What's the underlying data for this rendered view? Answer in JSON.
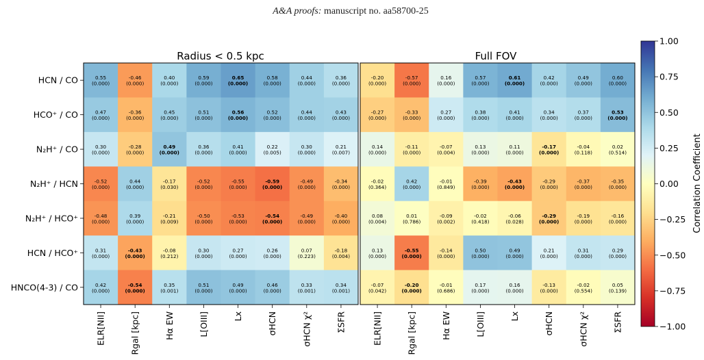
{
  "header": {
    "journal": "A&A proofs:",
    "manuscript": " manuscript no. aa58700-25"
  },
  "chart_data": {
    "type": "heatmap",
    "row_labels": [
      "HCN / CO",
      "HCO⁺ / CO",
      "N₂H⁺ / CO",
      "N₂H⁺ / HCN",
      "N₂H⁺ / HCO⁺",
      "HCN / HCO⁺",
      "HNCO(4-3) / CO"
    ],
    "col_labels": [
      "ELR[NII]",
      "Rgal [kpc]",
      "Hα EW",
      "L[OIII]",
      "Lx",
      "σHCN",
      "σHCN χ²",
      "ΣSFR"
    ],
    "colorbar": {
      "label": "Correlation Coefficient",
      "range": [
        -1.0,
        1.0
      ],
      "ticks": [
        "1.00",
        "0.75",
        "0.50",
        "0.25",
        "0.00",
        "−0.25",
        "−0.50",
        "−0.75",
        "−1.00"
      ],
      "colormap": "RdYlBu"
    },
    "panels": [
      {
        "title": "Radius < 0.5 kpc",
        "r": [
          [
            0.55,
            -0.46,
            0.4,
            0.59,
            0.65,
            0.58,
            0.44,
            0.36
          ],
          [
            0.47,
            -0.36,
            0.45,
            0.51,
            0.56,
            0.52,
            0.44,
            0.43
          ],
          [
            0.3,
            -0.28,
            0.49,
            0.36,
            0.41,
            0.22,
            0.3,
            0.21
          ],
          [
            -0.52,
            0.44,
            -0.17,
            -0.52,
            -0.55,
            -0.59,
            -0.49,
            -0.34
          ],
          [
            -0.48,
            0.39,
            -0.21,
            -0.5,
            -0.53,
            -0.54,
            -0.49,
            -0.4
          ],
          [
            0.31,
            -0.43,
            -0.08,
            0.3,
            0.27,
            0.26,
            0.07,
            -0.18
          ],
          [
            0.42,
            -0.54,
            0.35,
            0.51,
            0.49,
            0.46,
            0.33,
            0.34
          ]
        ],
        "text": [
          [
            "0.55",
            "-0.46",
            "0.40",
            "0.59",
            "0.65",
            "0.58",
            "0.44",
            "0.36"
          ],
          [
            "0.47",
            "-0.36",
            "0.45",
            "0.51",
            "0.56",
            "0.52",
            "0.44",
            "0.43"
          ],
          [
            "0.30",
            "-0.28",
            "0.49",
            "0.36",
            "0.41",
            "0.22",
            "0.30",
            "0.21"
          ],
          [
            "-0.52",
            "0.44",
            "-0.17",
            "-0.52",
            "-0.55",
            "-0.59",
            "-0.49",
            "-0.34"
          ],
          [
            "-0.48",
            "0.39",
            "-0.21",
            "-0.50",
            "-0.53",
            "-0.54",
            "-0.49",
            "-0.40"
          ],
          [
            "0.31",
            "-0.43",
            "-0.08",
            "0.30",
            "0.27",
            "0.26",
            "0.07",
            "-0.18"
          ],
          [
            "0.42",
            "-0.54",
            "0.35",
            "0.51",
            "0.49",
            "0.46",
            "0.33",
            "0.34"
          ]
        ],
        "p": [
          [
            "(0.000)",
            "(0.000)",
            "(0.000)",
            "(0.000)",
            "(0.000)",
            "(0.000)",
            "(0.000)",
            "(0.000)"
          ],
          [
            "(0.000)",
            "(0.000)",
            "(0.000)",
            "(0.000)",
            "(0.000)",
            "(0.000)",
            "(0.000)",
            "(0.000)"
          ],
          [
            "(0.000)",
            "(0.000)",
            "(0.000)",
            "(0.000)",
            "(0.000)",
            "(0.005)",
            "(0.000)",
            "(0.007)"
          ],
          [
            "(0.000)",
            "(0.000)",
            "(0.030)",
            "(0.000)",
            "(0.000)",
            "(0.000)",
            "(0.000)",
            "(0.000)"
          ],
          [
            "(0.000)",
            "(0.000)",
            "(0.009)",
            "(0.000)",
            "(0.000)",
            "(0.000)",
            "(0.000)",
            "(0.000)"
          ],
          [
            "(0.000)",
            "(0.000)",
            "(0.212)",
            "(0.000)",
            "(0.000)",
            "(0.000)",
            "(0.223)",
            "(0.004)"
          ],
          [
            "(0.000)",
            "(0.000)",
            "(0.001)",
            "(0.000)",
            "(0.000)",
            "(0.000)",
            "(0.001)",
            "(0.001)"
          ]
        ],
        "bold": [
          [
            false,
            false,
            false,
            false,
            true,
            false,
            false,
            false
          ],
          [
            false,
            false,
            false,
            false,
            true,
            false,
            false,
            false
          ],
          [
            false,
            false,
            true,
            false,
            false,
            false,
            false,
            false
          ],
          [
            false,
            false,
            false,
            false,
            false,
            true,
            false,
            false
          ],
          [
            false,
            false,
            false,
            false,
            false,
            true,
            false,
            false
          ],
          [
            false,
            true,
            false,
            false,
            false,
            false,
            false,
            false
          ],
          [
            false,
            true,
            false,
            false,
            false,
            false,
            false,
            false
          ]
        ]
      },
      {
        "title": "Full FOV",
        "r": [
          [
            -0.2,
            -0.57,
            0.16,
            0.57,
            0.61,
            0.42,
            0.49,
            0.6
          ],
          [
            -0.27,
            -0.33,
            0.27,
            0.38,
            0.41,
            0.34,
            0.37,
            0.53
          ],
          [
            0.14,
            -0.11,
            -0.07,
            0.13,
            0.11,
            -0.17,
            -0.04,
            0.02
          ],
          [
            -0.02,
            0.42,
            -0.01,
            -0.39,
            -0.43,
            -0.29,
            -0.37,
            -0.35
          ],
          [
            0.08,
            0.01,
            -0.09,
            -0.02,
            -0.06,
            -0.29,
            -0.19,
            -0.16
          ],
          [
            0.13,
            -0.55,
            -0.14,
            0.5,
            0.49,
            0.21,
            0.31,
            0.29
          ],
          [
            -0.07,
            -0.2,
            -0.01,
            0.17,
            0.16,
            -0.13,
            -0.02,
            0.05
          ]
        ],
        "text": [
          [
            "-0.20",
            "-0.57",
            "0.16",
            "0.57",
            "0.61",
            "0.42",
            "0.49",
            "0.60"
          ],
          [
            "-0.27",
            "-0.33",
            "0.27",
            "0.38",
            "0.41",
            "0.34",
            "0.37",
            "0.53"
          ],
          [
            "0.14",
            "-0.11",
            "-0.07",
            "0.13",
            "0.11",
            "-0.17",
            "-0.04",
            "0.02"
          ],
          [
            "-0.02",
            "0.42",
            "-0.01",
            "-0.39",
            "-0.43",
            "-0.29",
            "-0.37",
            "-0.35"
          ],
          [
            "0.08",
            "0.01",
            "-0.09",
            "-0.02",
            "-0.06",
            "-0.29",
            "-0.19",
            "-0.16"
          ],
          [
            "0.13",
            "-0.55",
            "-0.14",
            "0.50",
            "0.49",
            "0.21",
            "0.31",
            "0.29"
          ],
          [
            "-0.07",
            "-0.20",
            "-0.01",
            "0.17",
            "0.16",
            "-0.13",
            "-0.02",
            "0.05"
          ]
        ],
        "p": [
          [
            "(0.000)",
            "(0.000)",
            "(0.000)",
            "(0.000)",
            "(0.000)",
            "(0.000)",
            "(0.000)",
            "(0.000)"
          ],
          [
            "(0.000)",
            "(0.000)",
            "(0.000)",
            "(0.000)",
            "(0.000)",
            "(0.000)",
            "(0.000)",
            "(0.000)"
          ],
          [
            "(0.000)",
            "(0.000)",
            "(0.004)",
            "(0.000)",
            "(0.000)",
            "(0.000)",
            "(0.118)",
            "(0.514)"
          ],
          [
            "(0.364)",
            "(0.000)",
            "(0.849)",
            "(0.000)",
            "(0.000)",
            "(0.000)",
            "(0.000)",
            "(0.000)"
          ],
          [
            "(0.004)",
            "(0.786)",
            "(0.002)",
            "(0.418)",
            "(0.028)",
            "(0.000)",
            "(0.000)",
            "(0.000)"
          ],
          [
            "(0.000)",
            "(0.000)",
            "(0.000)",
            "(0.000)",
            "(0.000)",
            "(0.000)",
            "(0.000)",
            "(0.000)"
          ],
          [
            "(0.042)",
            "(0.000)",
            "(0.686)",
            "(0.000)",
            "(0.000)",
            "(0.000)",
            "(0.554)",
            "(0.139)"
          ]
        ],
        "bold": [
          [
            false,
            false,
            false,
            false,
            true,
            false,
            false,
            false
          ],
          [
            false,
            false,
            false,
            false,
            false,
            false,
            false,
            true
          ],
          [
            false,
            false,
            false,
            false,
            false,
            true,
            false,
            false
          ],
          [
            false,
            false,
            false,
            false,
            true,
            false,
            false,
            false
          ],
          [
            false,
            false,
            false,
            false,
            false,
            true,
            false,
            false
          ],
          [
            false,
            true,
            false,
            false,
            false,
            false,
            false,
            false
          ],
          [
            false,
            true,
            false,
            false,
            false,
            false,
            false,
            false
          ]
        ]
      }
    ]
  }
}
